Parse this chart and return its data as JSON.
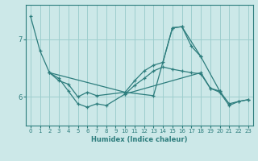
{
  "xlabel": "Humidex (Indice chaleur)",
  "bg_color": "#cce8e8",
  "grid_color": "#9ecece",
  "line_color": "#2d7d7d",
  "xlim": [
    -0.5,
    23.5
  ],
  "ylim": [
    5.5,
    7.6
  ],
  "yticks": [
    6,
    7
  ],
  "xticks": [
    0,
    1,
    2,
    3,
    4,
    5,
    6,
    7,
    8,
    9,
    10,
    11,
    12,
    13,
    14,
    15,
    16,
    17,
    18,
    19,
    20,
    21,
    22,
    23
  ],
  "series": [
    {
      "x": [
        0,
        1,
        2,
        3,
        4,
        5,
        6,
        7,
        8,
        10,
        11,
        12,
        13,
        14,
        15,
        16,
        17,
        18,
        19,
        20,
        21,
        22,
        23
      ],
      "y": [
        7.4,
        6.8,
        6.42,
        6.32,
        6.1,
        5.88,
        5.82,
        5.88,
        5.85,
        6.05,
        6.2,
        6.32,
        6.45,
        6.52,
        6.48,
        6.45,
        6.42,
        6.4,
        6.15,
        6.1,
        5.88,
        5.92,
        5.95
      ]
    },
    {
      "x": [
        2,
        3,
        4,
        5,
        6,
        7,
        10,
        13,
        15,
        16,
        17,
        18,
        20
      ],
      "y": [
        6.42,
        6.28,
        6.22,
        6.0,
        6.08,
        6.02,
        6.08,
        6.02,
        7.2,
        7.22,
        6.88,
        6.7,
        6.1
      ]
    },
    {
      "x": [
        2,
        10,
        11,
        12,
        13,
        14,
        15,
        16,
        18
      ],
      "y": [
        6.42,
        6.08,
        6.28,
        6.45,
        6.55,
        6.6,
        7.2,
        7.22,
        6.7
      ]
    },
    {
      "x": [
        10,
        18,
        19,
        20,
        21,
        22,
        23
      ],
      "y": [
        6.05,
        6.42,
        6.15,
        6.08,
        5.85,
        5.92,
        5.95
      ]
    }
  ]
}
